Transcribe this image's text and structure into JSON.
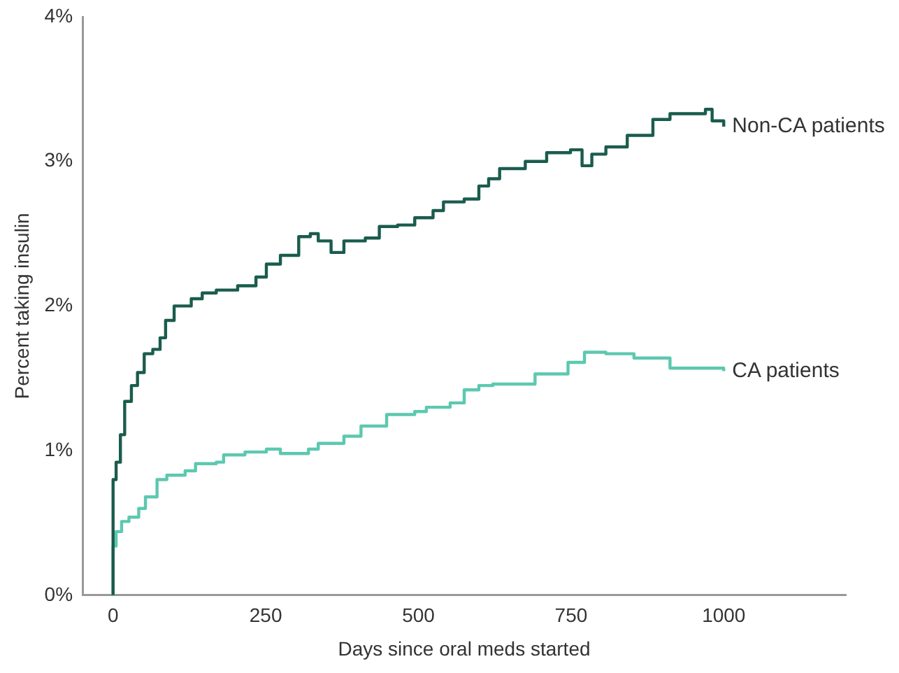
{
  "chart_data": {
    "type": "step",
    "xlabel": "Days since oral meds started",
    "ylabel": "Percent taking insulin",
    "xlim": [
      -50,
      1200
    ],
    "xticks": [
      0,
      250,
      500,
      750,
      1000
    ],
    "ylim": [
      0,
      4
    ],
    "yticks": [
      {
        "value": 0,
        "label": "0%"
      },
      {
        "value": 1,
        "label": "1%"
      },
      {
        "value": 2,
        "label": "2%"
      },
      {
        "value": 3,
        "label": "3%"
      },
      {
        "value": 4,
        "label": "4%"
      }
    ],
    "grid": false,
    "legend": false,
    "series": [
      {
        "name": "Non-CA patients",
        "color": "#1a5c4e",
        "x": [
          0,
          0,
          5,
          12,
          19,
          30,
          40,
          51,
          65,
          77,
          86,
          100,
          128,
          146,
          169,
          204,
          234,
          251,
          274,
          304,
          323,
          336,
          357,
          378,
          413,
          436,
          466,
          494,
          524,
          541,
          575,
          599,
          615,
          633,
          675,
          710,
          749,
          768,
          784,
          807,
          842,
          884,
          912,
          970,
          981,
          1000
        ],
        "values": [
          0,
          0.8,
          0.92,
          1.11,
          1.34,
          1.45,
          1.54,
          1.67,
          1.7,
          1.78,
          1.9,
          2.0,
          2.05,
          2.09,
          2.11,
          2.14,
          2.2,
          2.29,
          2.35,
          2.48,
          2.5,
          2.45,
          2.37,
          2.45,
          2.47,
          2.55,
          2.56,
          2.61,
          2.66,
          2.72,
          2.74,
          2.83,
          2.88,
          2.95,
          3.0,
          3.06,
          3.08,
          2.97,
          3.05,
          3.1,
          3.18,
          3.29,
          3.33,
          3.36,
          3.28,
          3.24
        ]
      },
      {
        "name": "CA patients",
        "color": "#5cc8b0",
        "x": [
          0,
          0,
          5,
          14,
          26,
          42,
          53,
          72,
          88,
          118,
          135,
          169,
          181,
          216,
          251,
          274,
          320,
          336,
          378,
          406,
          448,
          494,
          513,
          552,
          575,
          599,
          622,
          691,
          745,
          772,
          807,
          853,
          912,
          1000
        ],
        "values": [
          0,
          0.34,
          0.44,
          0.51,
          0.54,
          0.6,
          0.68,
          0.8,
          0.83,
          0.86,
          0.91,
          0.92,
          0.97,
          0.99,
          1.01,
          0.98,
          1.01,
          1.05,
          1.1,
          1.17,
          1.25,
          1.27,
          1.3,
          1.33,
          1.42,
          1.45,
          1.46,
          1.53,
          1.61,
          1.68,
          1.67,
          1.64,
          1.57,
          1.55
        ]
      }
    ]
  }
}
